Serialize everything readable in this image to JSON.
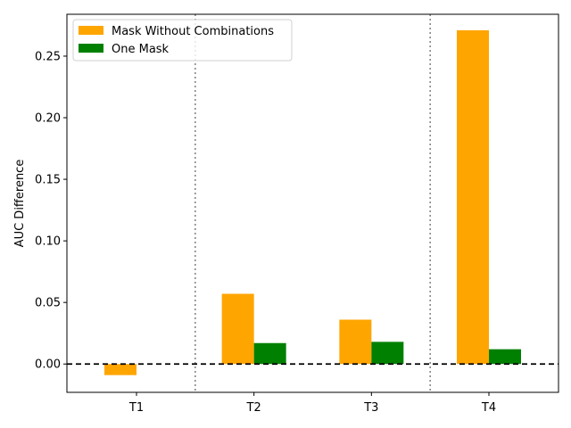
{
  "chart_data": {
    "type": "bar",
    "categories": [
      "T1",
      "T2",
      "T3",
      "T4"
    ],
    "series": [
      {
        "name": "Mask Without Combinations",
        "color": "#ffa500",
        "values": [
          -0.009,
          0.057,
          0.036,
          0.271
        ]
      },
      {
        "name": "One Mask",
        "color": "#008000",
        "values": [
          0.0,
          0.017,
          0.018,
          0.012
        ]
      }
    ],
    "xlabel": "",
    "ylabel": "AUC Difference",
    "ylim": [
      -0.023,
      0.284
    ],
    "yticks": [
      0.0,
      0.05,
      0.1,
      0.15,
      0.2,
      0.25
    ],
    "ytick_labels": [
      "0.00",
      "0.05",
      "0.10",
      "0.15",
      "0.20",
      "0.25"
    ],
    "reference_line": {
      "y": 0,
      "style": "dashed",
      "color": "#000000"
    },
    "group_separators_after": [
      "T1",
      "T3"
    ],
    "separator_color": "#808080",
    "legend_position": "top-left",
    "grid": false
  }
}
